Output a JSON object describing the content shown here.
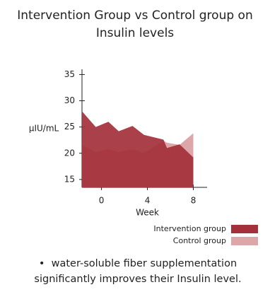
{
  "chart_data": {
    "type": "area",
    "title": "Intervention Group vs Control group on Insulin levels",
    "x_label": "Week",
    "y_label": "μIU/mL",
    "x": [
      -1.7,
      -0.5,
      0.6,
      1.5,
      2.7,
      3.7,
      5.4,
      5.7,
      6.8,
      8
    ],
    "series": [
      {
        "name": "Intervention group",
        "color": "#a3303a",
        "values": [
          28,
          25,
          26,
          24.2,
          25.2,
          23.5,
          22.6,
          21,
          21.7,
          19.2
        ]
      },
      {
        "name": "Control group",
        "color": "#dda7aa",
        "values": [
          21.6,
          20.2,
          20.8,
          20.2,
          20.8,
          20,
          22.4,
          22,
          21.6,
          23.8
        ]
      }
    ],
    "xlim": [
      -1.7,
      9.2
    ],
    "xticks": [
      0,
      4,
      8
    ],
    "ylim": [
      13.5,
      36
    ],
    "yticks": [
      15,
      20,
      25,
      30,
      35
    ],
    "legend": "bottom-right",
    "annotation": "water-soluble fiber supplementation significantly improves their Insulin level."
  }
}
